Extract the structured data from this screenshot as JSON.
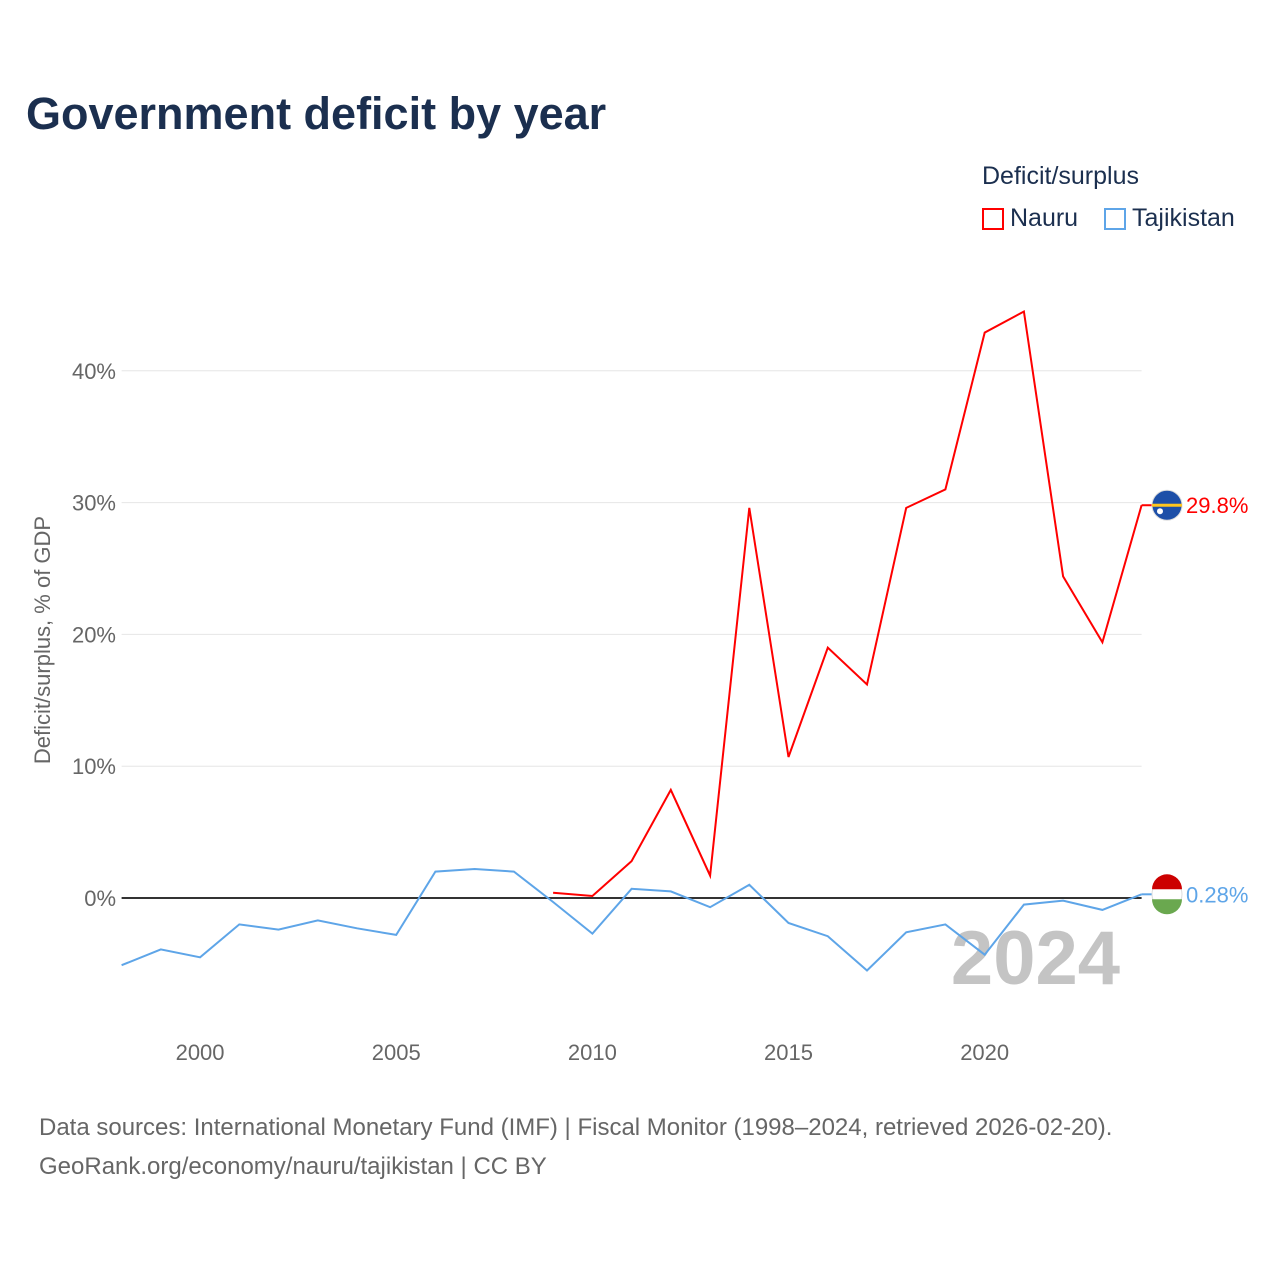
{
  "chart_data": {
    "type": "line",
    "title": "Government deficit by year",
    "ylabel": "Deficit/surplus, % of GDP",
    "xlabel": "",
    "xlim": [
      1998,
      2024
    ],
    "ylim": [
      -6,
      47
    ],
    "x_ticks": [
      2000,
      2005,
      2010,
      2015,
      2020
    ],
    "x_tick_labels": [
      "2000",
      "2005",
      "2010",
      "2015",
      "2020"
    ],
    "y_ticks": [
      0,
      10,
      20,
      30,
      40
    ],
    "y_tick_labels": [
      "0%",
      "10%",
      "20%",
      "30%",
      "40%"
    ],
    "grid": true,
    "legend": {
      "title": "Deficit/surplus",
      "placement": "top-right"
    },
    "year_watermark": "2024",
    "series": [
      {
        "name": "Nauru",
        "color": "#ff0000",
        "end_label": "29.8%",
        "x": [
          2009,
          2010,
          2011,
          2012,
          2013,
          2014,
          2015,
          2016,
          2017,
          2018,
          2019,
          2020,
          2021,
          2022,
          2023,
          2024
        ],
        "values": [
          0.4,
          0.15,
          2.8,
          8.2,
          1.7,
          29.6,
          10.7,
          19.0,
          16.2,
          29.6,
          31.0,
          42.9,
          44.5,
          24.4,
          19.4,
          29.8
        ]
      },
      {
        "name": "Tajikistan",
        "color": "#5ea5e8",
        "end_label": "0.28%",
        "x": [
          1998,
          1999,
          2000,
          2001,
          2002,
          2003,
          2004,
          2005,
          2006,
          2007,
          2008,
          2009,
          2010,
          2011,
          2012,
          2013,
          2014,
          2015,
          2016,
          2017,
          2018,
          2019,
          2020,
          2021,
          2022,
          2023,
          2024
        ],
        "values": [
          -5.1,
          -3.9,
          -4.5,
          -2.0,
          -2.4,
          -1.7,
          -2.3,
          -2.8,
          2.0,
          2.2,
          2.0,
          -0.3,
          -2.7,
          0.7,
          0.5,
          -0.7,
          1.0,
          -1.9,
          -2.9,
          -5.5,
          -2.6,
          -2.0,
          -4.3,
          -0.5,
          -0.2,
          -0.9,
          0.28
        ]
      }
    ]
  },
  "footer": {
    "sources": "Data sources: International Monetary Fund (IMF) | Fiscal Monitor (1998–2024, retrieved 2026-02-20).",
    "link": "GeoRank.org/economy/nauru/tajikistan | CC BY"
  }
}
